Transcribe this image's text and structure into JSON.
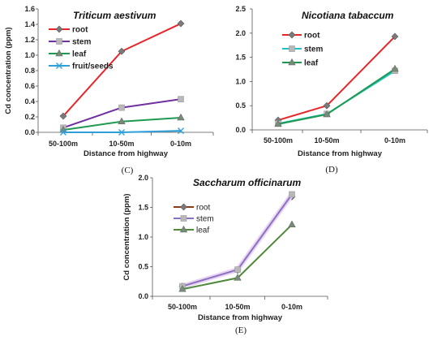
{
  "chart_data": [
    {
      "type": "line",
      "panel": "(C)",
      "title": "Triticum aestivum",
      "xlabel": "Distance from highway",
      "ylabel": "Cd concentration (ppm)",
      "categories": [
        "50-100m",
        "10-50m",
        "0-10m"
      ],
      "ylim": [
        0,
        1.6
      ],
      "yticks": [
        "0.0",
        "0.2",
        "0.4",
        "0.6",
        "0.8",
        "1.0",
        "1.2",
        "1.4",
        "1.6"
      ],
      "legend": "top-left",
      "series": [
        {
          "name": "root",
          "values": [
            0.21,
            1.05,
            1.41
          ],
          "color": "#e8262a",
          "marker": "diamond"
        },
        {
          "name": "stem",
          "values": [
            0.06,
            0.32,
            0.43
          ],
          "color": "#7030a0",
          "marker": "square"
        },
        {
          "name": "leaf",
          "values": [
            0.03,
            0.14,
            0.19
          ],
          "color": "#1e9a50",
          "marker": "triangle"
        },
        {
          "name": "fruit/seeds",
          "values": [
            0.0,
            0.0,
            0.02
          ],
          "color": "#2e9fd8",
          "marker": "x"
        }
      ]
    },
    {
      "type": "line",
      "panel": "(D)",
      "title": "Nicotiana tabaccum",
      "xlabel": "Distance from highway",
      "ylabel": "",
      "categories": [
        "50-100m",
        "10-50m",
        "0-10m"
      ],
      "ylim": [
        0,
        2.5
      ],
      "yticks": [
        "0.0",
        "0.5",
        "1.0",
        "1.5",
        "2.0",
        "2.5"
      ],
      "legend": "top-left",
      "series": [
        {
          "name": "root",
          "values": [
            0.2,
            0.5,
            1.93
          ],
          "color": "#e8262a",
          "marker": "diamond"
        },
        {
          "name": "stem",
          "values": [
            0.13,
            0.33,
            1.22
          ],
          "color": "#1fc1c6",
          "marker": "square"
        },
        {
          "name": "leaf",
          "values": [
            0.12,
            0.32,
            1.26
          ],
          "color": "#1e9a50",
          "marker": "triangle"
        }
      ]
    },
    {
      "type": "line",
      "panel": "(E)",
      "title": "Saccharum officinarum",
      "xlabel": "Distance from highway",
      "ylabel": "Cd concentration (ppm)",
      "categories": [
        "50-100m",
        "10-50m",
        "0-10m"
      ],
      "ylim": [
        0,
        2.0
      ],
      "yticks": [
        "0.0",
        "0.5",
        "1.0",
        "1.5",
        "2.0"
      ],
      "legend": "top-left",
      "series": [
        {
          "name": "root",
          "values": [
            0.17,
            0.44,
            1.68
          ],
          "color": "#8b3a1a",
          "marker": "diamond"
        },
        {
          "name": "stem",
          "values": [
            0.17,
            0.45,
            1.72
          ],
          "color": "#8a6fc4",
          "marker": "square"
        },
        {
          "name": "leaf",
          "values": [
            0.12,
            0.31,
            1.21
          ],
          "color": "#4e8a3a",
          "marker": "triangle"
        }
      ]
    }
  ]
}
